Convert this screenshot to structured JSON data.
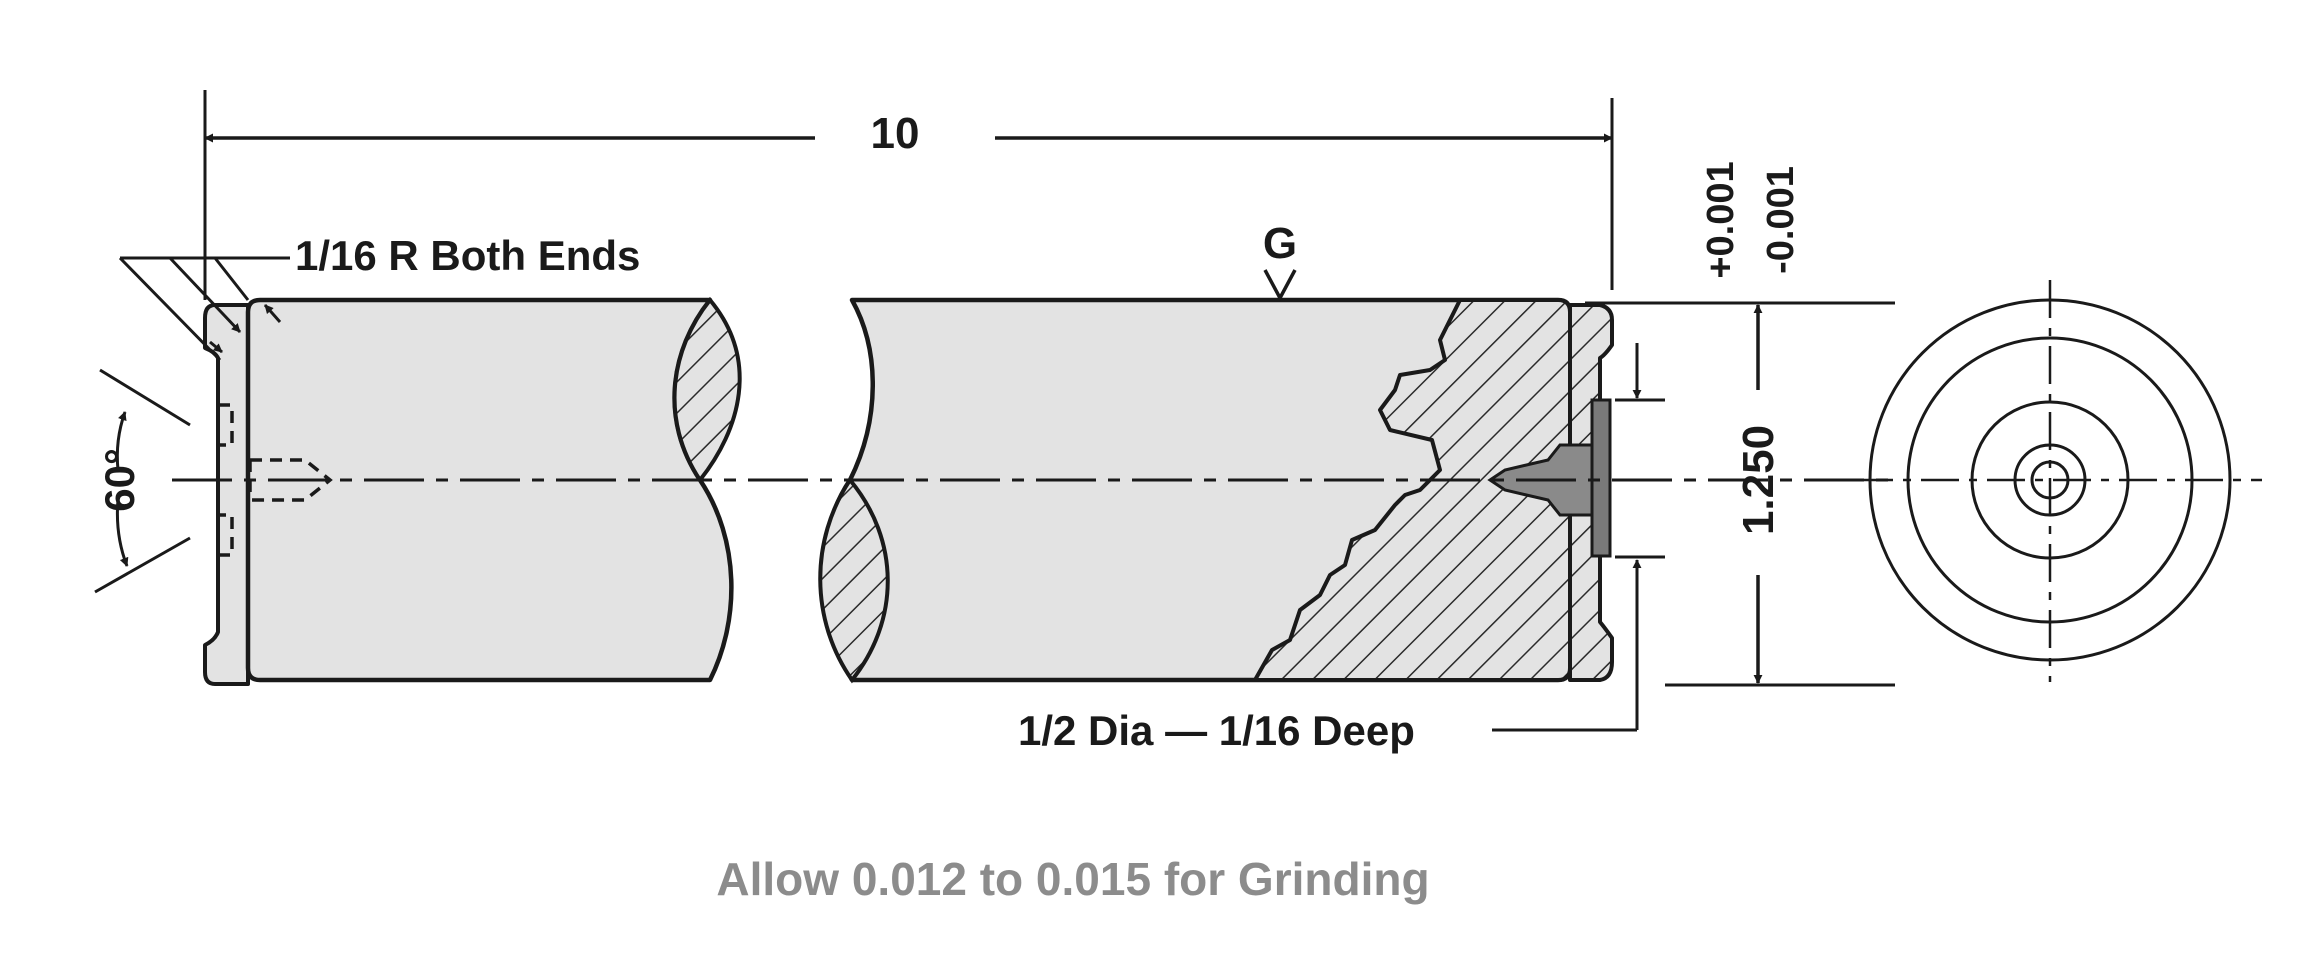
{
  "drawing": {
    "dimension_length": "10",
    "end_radius_note": "1/16 R Both Ends",
    "center_angle": "60°",
    "grind_symbol": "G",
    "tolerance_plus": "+0.001",
    "tolerance_minus": "-0.001",
    "diameter": "1.250",
    "recess_note": "1/2 Dia — 1/16 Deep",
    "grinding_note": "Allow 0.012 to 0.015 for Grinding"
  },
  "colors": {
    "line": "#1a1a1a",
    "part_fill": "#e3e3e3",
    "note_gray": "#8c8c8c",
    "hatch": "#2a2a2a"
  }
}
